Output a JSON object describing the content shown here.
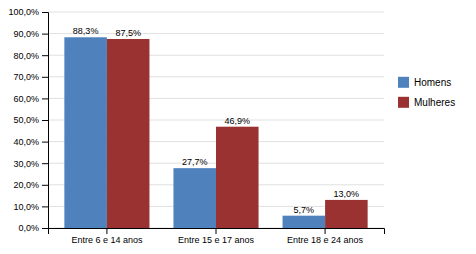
{
  "chart_data": {
    "type": "bar",
    "categories": [
      "Entre 6 e 14 anos",
      "Entre 15 e 17 anos",
      "Entre 18 e 24 anos"
    ],
    "series": [
      {
        "name": "Homens",
        "color": "#4F81BD",
        "values": [
          88.3,
          27.7,
          5.7
        ],
        "value_labels": [
          "88,3%",
          "27,7%",
          "5,7%"
        ]
      },
      {
        "name": "Mulheres",
        "color": "#9B3232",
        "values": [
          87.5,
          46.9,
          13.0
        ],
        "value_labels": [
          "87,5%",
          "46,9%",
          "13,0%"
        ]
      }
    ],
    "ylim": [
      0,
      100
    ],
    "yticks": [
      {
        "value": 0,
        "label": "0,0%"
      },
      {
        "value": 10,
        "label": "10,0%"
      },
      {
        "value": 20,
        "label": "20,0%"
      },
      {
        "value": 30,
        "label": "30,0%"
      },
      {
        "value": 40,
        "label": "40,0%"
      },
      {
        "value": 50,
        "label": "50,0%"
      },
      {
        "value": 60,
        "label": "60,0%"
      },
      {
        "value": 70,
        "label": "70,0%"
      },
      {
        "value": 80,
        "label": "80,0%"
      },
      {
        "value": 90,
        "label": "90,0%"
      },
      {
        "value": 100,
        "label": "100,0%"
      }
    ],
    "grid": true,
    "legend": "right",
    "data_labels": true
  }
}
